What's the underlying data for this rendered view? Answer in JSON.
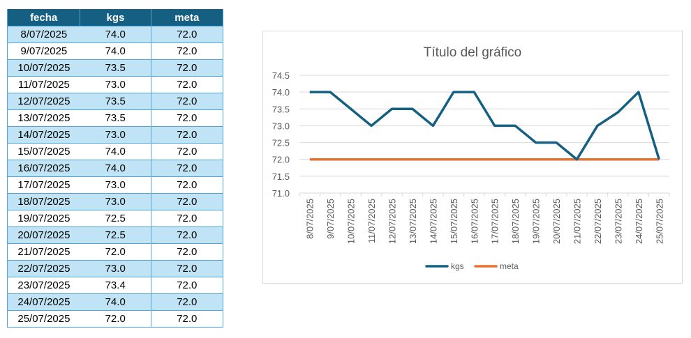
{
  "table": {
    "headers": [
      "fecha",
      "kgs",
      "meta"
    ],
    "rows": [
      [
        "8/07/2025",
        "74.0",
        "72.0"
      ],
      [
        "9/07/2025",
        "74.0",
        "72.0"
      ],
      [
        "10/07/2025",
        "73.5",
        "72.0"
      ],
      [
        "11/07/2025",
        "73.0",
        "72.0"
      ],
      [
        "12/07/2025",
        "73.5",
        "72.0"
      ],
      [
        "13/07/2025",
        "73.5",
        "72.0"
      ],
      [
        "14/07/2025",
        "73.0",
        "72.0"
      ],
      [
        "15/07/2025",
        "74.0",
        "72.0"
      ],
      [
        "16/07/2025",
        "74.0",
        "72.0"
      ],
      [
        "17/07/2025",
        "73.0",
        "72.0"
      ],
      [
        "18/07/2025",
        "73.0",
        "72.0"
      ],
      [
        "19/07/2025",
        "72.5",
        "72.0"
      ],
      [
        "20/07/2025",
        "72.5",
        "72.0"
      ],
      [
        "21/07/2025",
        "72.0",
        "72.0"
      ],
      [
        "22/07/2025",
        "73.0",
        "72.0"
      ],
      [
        "23/07/2025",
        "73.4",
        "72.0"
      ],
      [
        "24/07/2025",
        "74.0",
        "72.0"
      ],
      [
        "25/07/2025",
        "72.0",
        "72.0"
      ]
    ]
  },
  "chart_data": {
    "type": "line",
    "title": "Título del gráfico",
    "categories": [
      "8/07/2025",
      "9/07/2025",
      "10/07/2025",
      "11/07/2025",
      "12/07/2025",
      "13/07/2025",
      "14/07/2025",
      "15/07/2025",
      "16/07/2025",
      "17/07/2025",
      "18/07/2025",
      "19/07/2025",
      "20/07/2025",
      "21/07/2025",
      "22/07/2025",
      "23/07/2025",
      "24/07/2025",
      "25/07/2025"
    ],
    "series": [
      {
        "name": "kgs",
        "color": "#156082",
        "values": [
          74.0,
          74.0,
          73.5,
          73.0,
          73.5,
          73.5,
          73.0,
          74.0,
          74.0,
          73.0,
          73.0,
          72.5,
          72.5,
          72.0,
          73.0,
          73.4,
          74.0,
          72.0
        ]
      },
      {
        "name": "meta",
        "color": "#e97132",
        "values": [
          72,
          72,
          72,
          72,
          72,
          72,
          72,
          72,
          72,
          72,
          72,
          72,
          72,
          72,
          72,
          72,
          72,
          72
        ]
      }
    ],
    "ylim": [
      71.0,
      74.5
    ],
    "yticks": [
      "71.0",
      "71.5",
      "72.0",
      "72.5",
      "73.0",
      "73.5",
      "74.0",
      "74.5"
    ],
    "grid": true,
    "legend": "bottom"
  }
}
